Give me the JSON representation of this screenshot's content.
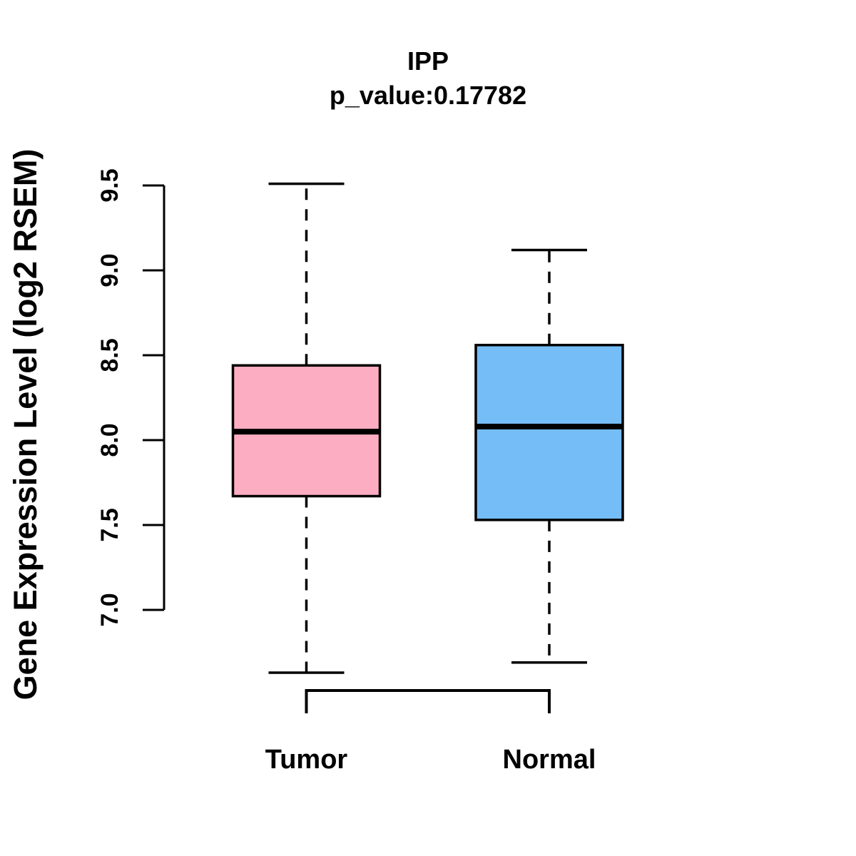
{
  "chart_data": {
    "type": "boxplot",
    "title": "IPP",
    "subtitle": "p_value:0.17782",
    "ylabel": "Gene Expression Level (log2 RSEM)",
    "xlabel": "",
    "categories": [
      "Tumor",
      "Normal"
    ],
    "y_axis": {
      "ticks": [
        7.0,
        7.5,
        8.0,
        8.5,
        9.0,
        9.5
      ],
      "tick_labels": [
        "7.0",
        "7.5",
        "8.0",
        "8.5",
        "9.0",
        "9.5"
      ],
      "axis_range": [
        7.0,
        9.5
      ]
    },
    "boxes": [
      {
        "category": "Tumor",
        "fill_color": "#FCADC1",
        "whisker_low": 6.63,
        "q1": 7.67,
        "median": 8.05,
        "q3": 8.44,
        "whisker_high": 9.51
      },
      {
        "category": "Normal",
        "fill_color": "#75BDF7",
        "whisker_low": 6.69,
        "q1": 7.53,
        "median": 8.08,
        "q3": 8.56,
        "whisker_high": 9.12
      }
    ],
    "colors": {
      "line": "#000000",
      "background": "#FFFFFF"
    },
    "legend": "none",
    "grid": false
  }
}
